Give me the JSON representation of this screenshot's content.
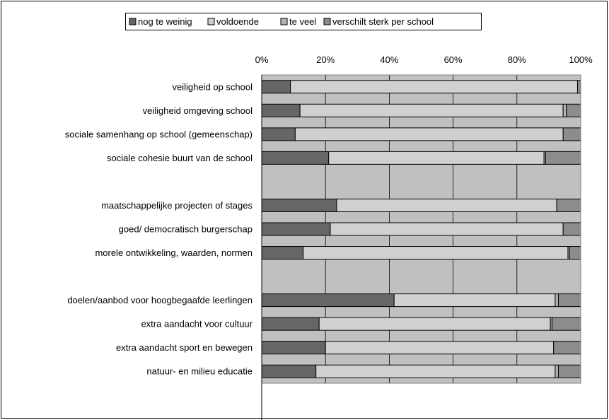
{
  "chart_data": {
    "type": "bar",
    "orientation": "horizontal",
    "stacked": "percent",
    "grid": true,
    "legend_position": "top",
    "categories": [
      "veiligheid op school",
      "veiligheid omgeving school",
      "sociale samenhang op school (gemeenschap)",
      "sociale cohesie buurt van de school",
      "",
      "maatschappelijke projecten of stages",
      "goed/ democratisch burgerschap",
      "morele ontwikkeling, waarden, normen",
      "",
      "doelen/aanbod voor hoogbegaafde leerlingen",
      "extra aandacht voor cultuur",
      "extra aandacht sport en bewegen",
      "natuur- en milieu educatie"
    ],
    "series": [
      {
        "name": "nog te weinig",
        "color": "#666666",
        "values": [
          9,
          12,
          10.5,
          21,
          null,
          23.5,
          21.5,
          13,
          null,
          41.5,
          18,
          20,
          17
        ]
      },
      {
        "name": "voldoende",
        "color": "#d0d0d0",
        "values": [
          90,
          82.5,
          84,
          67.5,
          null,
          69,
          73,
          83,
          null,
          50.5,
          72.5,
          71.5,
          75
        ]
      },
      {
        "name": "te veel",
        "color": "#b4b4b4",
        "values": [
          0,
          1,
          0,
          0.5,
          null,
          0,
          0,
          0.5,
          null,
          1,
          0.5,
          0,
          1
        ]
      },
      {
        "name": "verschilt sterk per school",
        "color": "#8c8c8c",
        "values": [
          1,
          4.5,
          5.5,
          11,
          null,
          7.5,
          5.5,
          3.5,
          null,
          7,
          9,
          8.5,
          7
        ]
      }
    ],
    "x_ticks": [
      "0%",
      "20%",
      "40%",
      "60%",
      "80%",
      "100%"
    ],
    "xlim": [
      0,
      100
    ],
    "plot_background": "#c0c0c0",
    "bar_edge_color": "#000000"
  }
}
